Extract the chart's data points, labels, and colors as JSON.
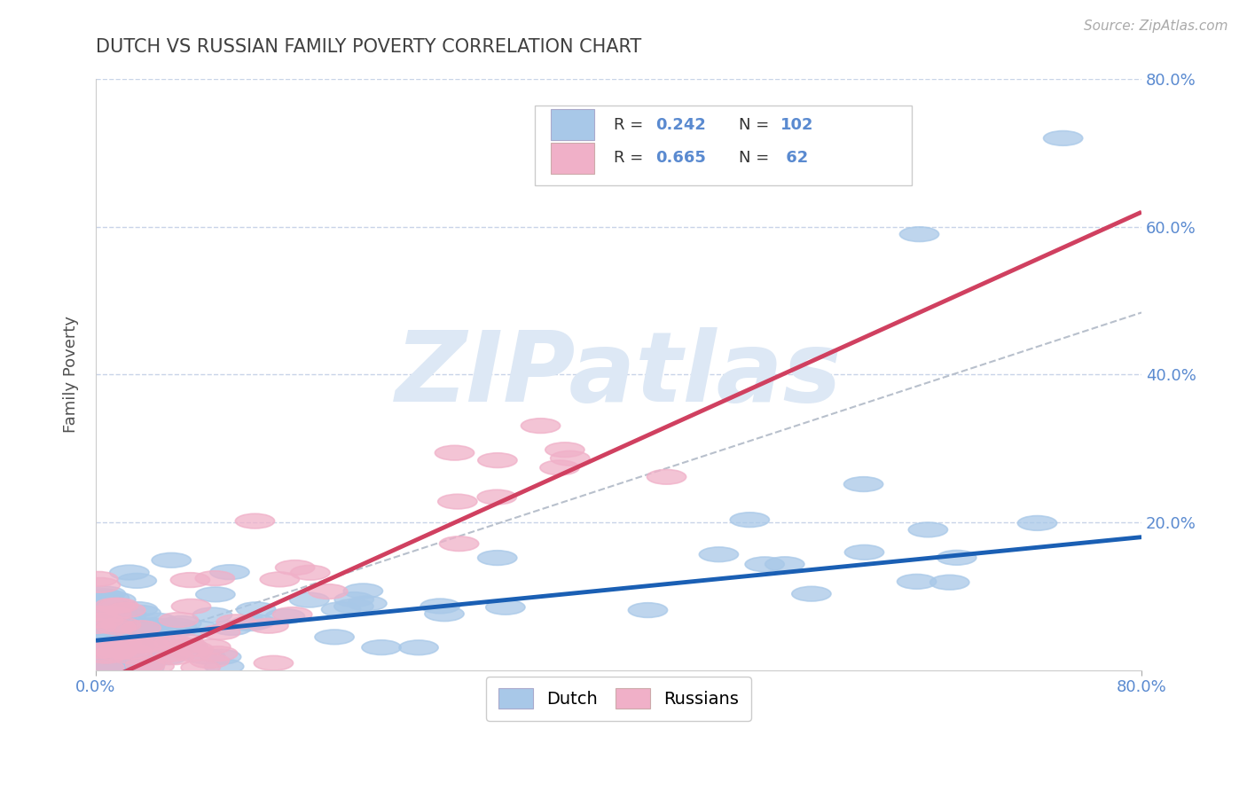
{
  "title": "DUTCH VS RUSSIAN FAMILY POVERTY CORRELATION CHART",
  "source": "Source: ZipAtlas.com",
  "ylabel": "Family Poverty",
  "xlim": [
    0,
    0.8
  ],
  "ylim": [
    0,
    0.8
  ],
  "dutch_R": 0.242,
  "dutch_N": 102,
  "russian_R": 0.665,
  "russian_N": 62,
  "dutch_color": "#a8c8e8",
  "dutch_line_color": "#1a5fb4",
  "russian_color": "#f0b0c8",
  "russian_line_color": "#d04060",
  "grid_color": "#c8d4e8",
  "background_color": "#ffffff",
  "title_color": "#404040",
  "axis_tick_color": "#5a8ad0",
  "watermark_color": "#dde8f5",
  "dashed_line_color": "#b8c0cc",
  "dutch_intercept": 0.04,
  "dutch_slope": 0.175,
  "russian_intercept": -0.02,
  "russian_slope": 0.8,
  "dashed_intercept": 0.02,
  "dashed_slope": 0.58
}
